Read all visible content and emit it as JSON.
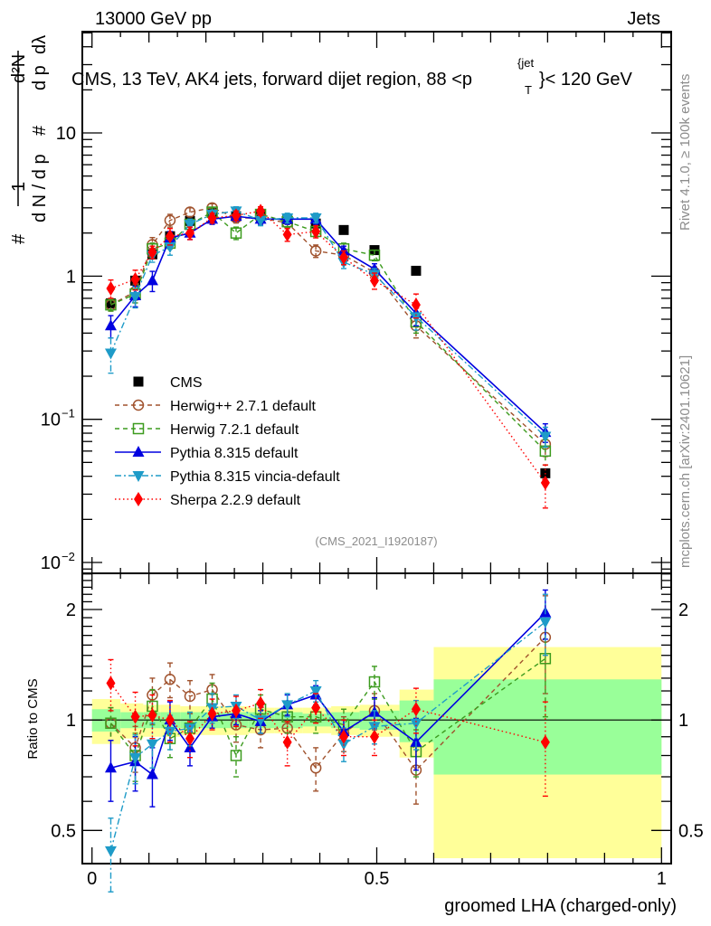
{
  "header": {
    "left": "13000 GeV pp",
    "right": "Jets"
  },
  "side_labels": {
    "top": "Rivet 4.1.0, ≥ 100k events",
    "bottom": "mcplots.cern.ch [arXiv:2401.10621]"
  },
  "chart_data": [
    {
      "type": "line",
      "panel": "main",
      "title": "CMS, 13 TeV, AK4 jets, forward dijet region, 88 <p_T^{jet}< 120 GeV",
      "title_parts": {
        "pre": "CMS, 13 TeV, AK4 jets, forward dijet region, 88 <p",
        "sup": "{jet",
        "sub": "T",
        "post": "}< 120 GeV"
      },
      "ylabel": "1/dN/dp_T  d²N/dp_T dλ",
      "ylabel_parts": {
        "hash": "#",
        "one": "1",
        "den": "d N / d p",
        "sub": "T",
        "num": "d²N",
        "den2": "d p",
        "lam": "dλ"
      },
      "yscale": "log",
      "ylim": [
        0.0084,
        51
      ],
      "xlim": [
        -0.017,
        1.017
      ],
      "ytick_labels": [
        {
          "value": 10,
          "label": "10"
        },
        {
          "value": 1,
          "label": "1"
        },
        {
          "value": 0.1,
          "label": "10",
          "exp": "−1"
        },
        {
          "value": 0.01,
          "label": "10",
          "exp": "−2"
        }
      ],
      "watermark": "(CMS_2021_I1920187)",
      "legend_position": "bottom-left",
      "x": [
        0.033,
        0.076,
        0.106,
        0.137,
        0.172,
        0.211,
        0.253,
        0.296,
        0.343,
        0.393,
        0.442,
        0.496,
        0.569,
        0.796
      ],
      "series": [
        {
          "name": "CMS",
          "color": "#000000",
          "marker": "square-filled",
          "line": "none",
          "values": [
            0.645,
            0.93,
            1.42,
            1.9,
            2.43,
            2.77,
            2.62,
            2.7,
            2.5,
            2.33,
            2.1,
            1.52,
            1.09,
            0.042
          ]
        },
        {
          "name": "Herwig++ 2.7.1 default",
          "color": "#a0522d",
          "marker": "circle-open",
          "line": "dashed",
          "values": [
            0.63,
            0.78,
            1.66,
            2.45,
            2.8,
            3.0,
            2.55,
            2.55,
            2.35,
            1.5,
            1.4,
            1.06,
            0.45,
            0.067
          ],
          "err": [
            0.06,
            0.1,
            0.2,
            0.25,
            0.2,
            0.2,
            0.2,
            0.2,
            0.2,
            0.15,
            0.15,
            0.1,
            0.08,
            0.012
          ]
        },
        {
          "name": "Herwig 7.2.1 default",
          "color": "#3c9b1e",
          "marker": "square-open",
          "line": "dashed",
          "values": [
            0.63,
            0.75,
            1.55,
            1.7,
            2.3,
            2.8,
            2.0,
            2.7,
            2.4,
            2.05,
            1.55,
            1.4,
            0.48,
            0.06
          ],
          "err": [
            0.06,
            0.1,
            0.15,
            0.15,
            0.2,
            0.2,
            0.2,
            0.2,
            0.2,
            0.15,
            0.15,
            0.12,
            0.08,
            0.012
          ]
        },
        {
          "name": "Pythia 8.315 default",
          "color": "#0000e0",
          "marker": "triangle-up",
          "line": "solid",
          "values": [
            0.45,
            0.73,
            0.93,
            1.85,
            2.0,
            2.5,
            2.62,
            2.5,
            2.5,
            2.5,
            1.5,
            1.12,
            0.55,
            0.081
          ],
          "err": [
            0.08,
            0.12,
            0.15,
            0.2,
            0.2,
            0.2,
            0.2,
            0.2,
            0.2,
            0.2,
            0.12,
            0.1,
            0.1,
            0.012
          ]
        },
        {
          "name": "Pythia 8.315 vincia-default",
          "color": "#1e9bc8",
          "marker": "triangle-down",
          "line": "dashdot",
          "values": [
            0.29,
            0.72,
            1.4,
            1.6,
            2.3,
            2.7,
            2.85,
            2.45,
            2.55,
            2.55,
            1.25,
            1.03,
            0.52,
            0.076
          ],
          "err": [
            0.08,
            0.12,
            0.15,
            0.2,
            0.2,
            0.2,
            0.2,
            0.2,
            0.2,
            0.2,
            0.12,
            0.1,
            0.1,
            0.012
          ]
        },
        {
          "name": "Sherpa 2.2.9 default",
          "color": "#ff0000",
          "marker": "diamond",
          "line": "dotted",
          "values": [
            0.82,
            0.95,
            1.47,
            1.9,
            2.0,
            2.55,
            2.65,
            2.85,
            1.95,
            2.05,
            1.35,
            0.93,
            0.63,
            0.036
          ],
          "err": [
            0.12,
            0.15,
            0.15,
            0.25,
            0.2,
            0.2,
            0.2,
            0.2,
            0.2,
            0.2,
            0.15,
            0.12,
            0.12,
            0.012
          ]
        }
      ]
    },
    {
      "type": "line",
      "panel": "ratio",
      "ylabel": "Ratio to CMS",
      "xlabel": "groomed LHA (charged-only)",
      "yscale": "log",
      "ylim": [
        0.406,
        2.51
      ],
      "xlim": [
        -0.017,
        1.017
      ],
      "ytick_labels": [
        {
          "value": 2,
          "label": "2"
        },
        {
          "value": 1,
          "label": "1"
        },
        {
          "value": 0.5,
          "label": "0.5"
        }
      ],
      "xtick_labels": [
        {
          "value": 0,
          "label": "0"
        },
        {
          "value": 0.5,
          "label": "0.5"
        },
        {
          "value": 1,
          "label": "1"
        }
      ],
      "x": [
        0.033,
        0.076,
        0.106,
        0.137,
        0.172,
        0.211,
        0.253,
        0.296,
        0.343,
        0.393,
        0.442,
        0.496,
        0.569,
        0.796
      ],
      "bands": {
        "edges": [
          0.0,
          0.05,
          0.09,
          0.12,
          0.155,
          0.19,
          0.23,
          0.275,
          0.32,
          0.37,
          0.42,
          0.47,
          0.54,
          0.6,
          1.0
        ],
        "inner": [
          0.07,
          0.05,
          0.05,
          0.05,
          0.05,
          0.05,
          0.05,
          0.05,
          0.05,
          0.04,
          0.05,
          0.06,
          0.13,
          0.29
        ],
        "outer": [
          0.14,
          0.11,
          0.1,
          0.1,
          0.09,
          0.09,
          0.09,
          0.08,
          0.08,
          0.08,
          0.09,
          0.1,
          0.21,
          0.58
        ],
        "inner_color": "#99ff99",
        "outer_color": "#ffff99"
      },
      "series": [
        {
          "name": "Herwig++ 2.7.1 default",
          "color": "#a0522d",
          "marker": "circle-open",
          "line": "dashed",
          "values": [
            0.98,
            0.84,
            1.17,
            1.29,
            1.16,
            1.21,
            0.97,
            0.94,
            0.95,
            0.74,
            0.92,
            1.06,
            0.73,
            1.68
          ],
          "err": [
            0.1,
            0.12,
            0.13,
            0.14,
            0.12,
            0.12,
            0.1,
            0.1,
            0.1,
            0.1,
            0.1,
            0.12,
            0.14,
            0.5
          ]
        },
        {
          "name": "Herwig 7.2.1 default",
          "color": "#3c9b1e",
          "marker": "square-open",
          "line": "dashed",
          "values": [
            0.98,
            0.8,
            1.09,
            0.89,
            0.95,
            1.14,
            0.8,
            1.07,
            1.02,
            1.02,
            0.97,
            1.27,
            0.82,
            1.47
          ],
          "err": [
            0.1,
            0.12,
            0.12,
            0.1,
            0.1,
            0.12,
            0.1,
            0.1,
            0.1,
            0.1,
            0.1,
            0.13,
            0.12,
            0.45
          ]
        },
        {
          "name": "Pythia 8.315 default",
          "color": "#0000e0",
          "marker": "triangle-up",
          "line": "solid",
          "values": [
            0.74,
            0.77,
            0.71,
            1.0,
            0.84,
            1.02,
            1.04,
            0.99,
            1.1,
            1.17,
            0.93,
            1.05,
            0.87,
            1.96
          ],
          "err": [
            0.14,
            0.13,
            0.13,
            0.12,
            0.09,
            0.07,
            0.07,
            0.07,
            0.07,
            0.07,
            0.07,
            0.1,
            0.14,
            0.3
          ]
        },
        {
          "name": "Pythia 8.315 vincia-default",
          "color": "#1e9bc8",
          "marker": "triangle-down",
          "line": "dashdot",
          "values": [
            0.44,
            0.79,
            0.86,
            0.93,
            0.95,
            1.08,
            1.09,
            1.0,
            1.1,
            1.2,
            0.86,
            0.96,
            0.98,
            1.85
          ],
          "err": [
            0.1,
            0.12,
            0.12,
            0.1,
            0.1,
            0.1,
            0.08,
            0.08,
            0.08,
            0.08,
            0.09,
            0.1,
            0.15,
            0.35
          ]
        },
        {
          "name": "Sherpa 2.2.9 default",
          "color": "#ff0000",
          "marker": "diamond",
          "line": "dotted",
          "values": [
            1.26,
            1.02,
            1.03,
            1.0,
            0.89,
            1.04,
            1.06,
            1.11,
            0.87,
            1.08,
            0.9,
            0.9,
            1.07,
            0.87
          ],
          "err": [
            0.2,
            0.17,
            0.14,
            0.13,
            0.1,
            0.1,
            0.1,
            0.1,
            0.12,
            0.1,
            0.1,
            0.1,
            0.15,
            0.25
          ]
        }
      ]
    }
  ]
}
